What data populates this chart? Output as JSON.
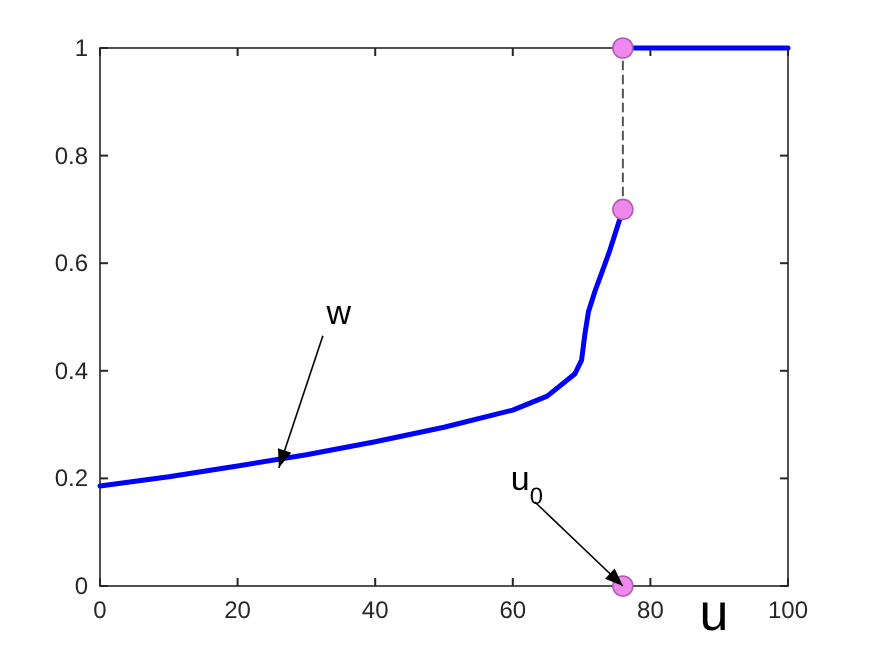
{
  "chart_data": {
    "type": "line",
    "xlabel": "u",
    "xlim": [
      0,
      100
    ],
    "ylim": [
      0,
      1
    ],
    "xticks": [
      0,
      20,
      40,
      60,
      80,
      100
    ],
    "yticks": [
      0,
      0.2,
      0.4,
      0.6,
      0.8,
      1
    ],
    "grid": false,
    "series": [
      {
        "type": "line",
        "color": "#0000ff",
        "x": [
          0,
          10,
          20,
          30,
          40,
          50,
          60,
          65,
          69,
          70,
          70.5,
          71,
          72,
          73,
          74,
          75,
          76
        ],
        "values": [
          0.186,
          0.203,
          0.223,
          0.244,
          0.268,
          0.295,
          0.327,
          0.353,
          0.394,
          0.42,
          0.47,
          0.51,
          0.55,
          0.585,
          0.62,
          0.66,
          0.7
        ]
      },
      {
        "type": "line",
        "color": "#0000ff",
        "x": [
          76,
          100
        ],
        "values": [
          1,
          1
        ]
      },
      {
        "type": "line",
        "color": "#555555",
        "line_style": "dashed",
        "x": [
          76,
          76
        ],
        "values": [
          0.7,
          1
        ]
      },
      {
        "type": "scatter",
        "color": "#ee88ee",
        "marker": "circle",
        "x": [
          76,
          76,
          76
        ],
        "values": [
          1,
          0.7,
          0
        ]
      }
    ],
    "annotations": [
      {
        "text": "w",
        "x": 26,
        "y": 0.22
      },
      {
        "text": "u$_{0}$",
        "x": 76,
        "y": 0
      }
    ]
  }
}
